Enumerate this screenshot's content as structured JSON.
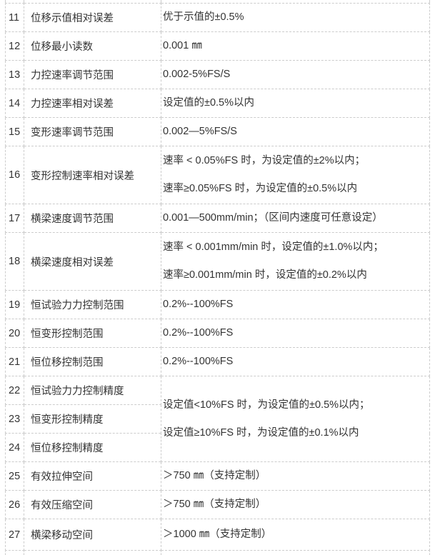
{
  "page": {
    "background_color": "#ffffff",
    "text_color": "#333333",
    "border_color": "#cccccc"
  },
  "spec_table": {
    "columns": [
      "row-number",
      "parameter-name",
      "parameter-value"
    ],
    "rows": [
      {
        "no": "11",
        "name": "位移示值相对误差",
        "value": [
          "优于示值的±0.5%"
        ]
      },
      {
        "no": "12",
        "name": "位移最小读数",
        "value": [
          "0.001 ㎜"
        ]
      },
      {
        "no": "13",
        "name": "力控速率调节范围",
        "value": [
          "0.002-5%FS/S"
        ]
      },
      {
        "no": "14",
        "name": "力控速率相对误差",
        "value": [
          "设定值的±0.5%以内"
        ]
      },
      {
        "no": "15",
        "name": "变形速率调节范围",
        "value": [
          "0.002—5%FS/S"
        ]
      },
      {
        "no": "16",
        "name": "变形控制速率相对误差",
        "value": [
          "速率 < 0.05%FS 时，为设定值的±2%以内；",
          "速率≥0.05%FS 时，为设定值的±0.5%以内"
        ]
      },
      {
        "no": "17",
        "name": "横梁速度调节范围",
        "value": [
          "0.001—500mm/min；（区间内速度可任意设定）"
        ]
      },
      {
        "no": "18",
        "name": "横梁速度相对误差",
        "value": [
          "速率 < 0.001mm/min 时，设定值的±1.0%以内；",
          "速率≥0.001mm/min 时，设定值的±0.2%以内"
        ]
      },
      {
        "no": "19",
        "name": "恒试验力力控制范围",
        "value": [
          "0.2%--100%FS"
        ]
      },
      {
        "no": "20",
        "name": "恒变形控制范围",
        "value": [
          "0.2%--100%FS"
        ]
      },
      {
        "no": "21",
        "name": "恒位移控制范围",
        "value": [
          "0.2%--100%FS"
        ]
      },
      {
        "no": "22",
        "name": "恒试验力力控制精度",
        "merged_group": "constant_control_precision"
      },
      {
        "no": "23",
        "name": "恒变形控制精度",
        "merged_group": "constant_control_precision"
      },
      {
        "no": "24",
        "name": "恒位移控制精度",
        "merged_group": "constant_control_precision"
      },
      {
        "no": "25",
        "name": "有效拉伸空间",
        "value": [
          "＞750 ㎜（支持定制）"
        ]
      },
      {
        "no": "26",
        "name": "有效压缩空间",
        "value": [
          "＞750 ㎜（支持定制）"
        ]
      },
      {
        "no": "27",
        "name": "横梁移动空间",
        "value": [
          "＞1000 ㎜（支持定制）"
        ]
      }
    ],
    "merged_values": {
      "constant_control_precision": [
        "设定值<10%FS 时，为设定值的±0.5%以内；",
        "设定值≥10%FS 时，为设定值的±0.1%以内"
      ]
    }
  }
}
